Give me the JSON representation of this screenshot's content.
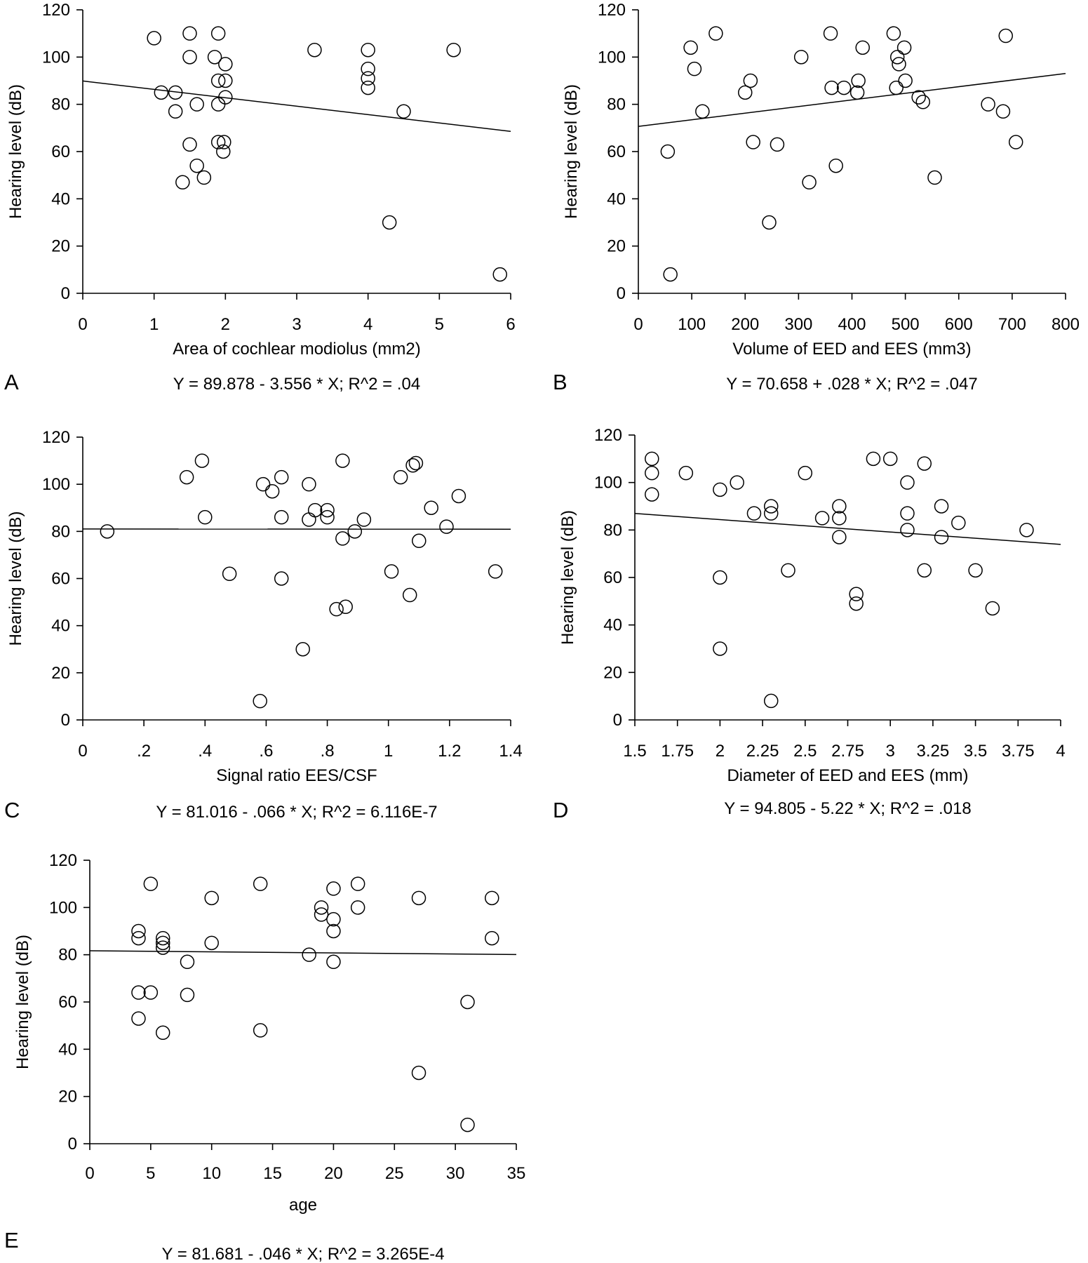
{
  "chart_data": [
    {
      "panel": "A",
      "type": "scatter",
      "xlabel": "Area of cochlear modiolus (mm2)",
      "ylabel": "Hearing level (dB)",
      "equation": "Y = 89.878 - 3.556 * X; R^2 = .04",
      "x_ticks": [
        "0",
        "1",
        "2",
        "3",
        "4",
        "5",
        "6"
      ],
      "y_ticks": [
        "0",
        "20",
        "40",
        "60",
        "80",
        "100",
        "120"
      ],
      "xlim": [
        0,
        6
      ],
      "ylim": [
        0,
        120
      ],
      "grid": false,
      "fit": {
        "intercept": 89.878,
        "slope": -3.556
      },
      "points": [
        {
          "x": 1.0,
          "y": 108
        },
        {
          "x": 1.1,
          "y": 85
        },
        {
          "x": 1.3,
          "y": 85
        },
        {
          "x": 1.3,
          "y": 77
        },
        {
          "x": 1.4,
          "y": 47
        },
        {
          "x": 1.5,
          "y": 110
        },
        {
          "x": 1.5,
          "y": 100
        },
        {
          "x": 1.5,
          "y": 63
        },
        {
          "x": 1.6,
          "y": 80
        },
        {
          "x": 1.6,
          "y": 54
        },
        {
          "x": 1.7,
          "y": 49
        },
        {
          "x": 1.85,
          "y": 100
        },
        {
          "x": 1.9,
          "y": 110
        },
        {
          "x": 1.9,
          "y": 90
        },
        {
          "x": 1.9,
          "y": 80
        },
        {
          "x": 1.9,
          "y": 64
        },
        {
          "x": 1.97,
          "y": 60
        },
        {
          "x": 2.0,
          "y": 97
        },
        {
          "x": 2.0,
          "y": 90
        },
        {
          "x": 2.0,
          "y": 83
        },
        {
          "x": 1.98,
          "y": 64
        },
        {
          "x": 3.25,
          "y": 103
        },
        {
          "x": 4.0,
          "y": 103
        },
        {
          "x": 4.0,
          "y": 95
        },
        {
          "x": 4.0,
          "y": 91
        },
        {
          "x": 4.0,
          "y": 87
        },
        {
          "x": 4.3,
          "y": 30
        },
        {
          "x": 4.5,
          "y": 77
        },
        {
          "x": 5.2,
          "y": 103
        },
        {
          "x": 5.85,
          "y": 8
        }
      ]
    },
    {
      "panel": "B",
      "type": "scatter",
      "xlabel": "Volume of EED and EES (mm3)",
      "ylabel": "Hearing level (dB)",
      "equation": "Y = 70.658 + .028 * X; R^2 = .047",
      "x_ticks": [
        "0",
        "100",
        "200",
        "300",
        "400",
        "500",
        "600",
        "700",
        "800"
      ],
      "y_ticks": [
        "0",
        "20",
        "40",
        "60",
        "80",
        "100",
        "120"
      ],
      "xlim": [
        0,
        800
      ],
      "ylim": [
        0,
        120
      ],
      "grid": false,
      "fit": {
        "intercept": 70.658,
        "slope": 0.028
      },
      "points": [
        {
          "x": 55,
          "y": 60
        },
        {
          "x": 60,
          "y": 8
        },
        {
          "x": 98,
          "y": 104
        },
        {
          "x": 105,
          "y": 95
        },
        {
          "x": 120,
          "y": 77
        },
        {
          "x": 145,
          "y": 110
        },
        {
          "x": 200,
          "y": 85
        },
        {
          "x": 210,
          "y": 90
        },
        {
          "x": 215,
          "y": 64
        },
        {
          "x": 245,
          "y": 30
        },
        {
          "x": 260,
          "y": 63
        },
        {
          "x": 305,
          "y": 100
        },
        {
          "x": 320,
          "y": 47
        },
        {
          "x": 360,
          "y": 110
        },
        {
          "x": 362,
          "y": 87
        },
        {
          "x": 370,
          "y": 54
        },
        {
          "x": 385,
          "y": 87
        },
        {
          "x": 410,
          "y": 85
        },
        {
          "x": 412,
          "y": 90
        },
        {
          "x": 420,
          "y": 104
        },
        {
          "x": 478,
          "y": 110
        },
        {
          "x": 483,
          "y": 87
        },
        {
          "x": 485,
          "y": 100
        },
        {
          "x": 488,
          "y": 97
        },
        {
          "x": 498,
          "y": 104
        },
        {
          "x": 500,
          "y": 90
        },
        {
          "x": 525,
          "y": 83
        },
        {
          "x": 533,
          "y": 81
        },
        {
          "x": 555,
          "y": 49
        },
        {
          "x": 655,
          "y": 80
        },
        {
          "x": 683,
          "y": 77
        },
        {
          "x": 688,
          "y": 109
        },
        {
          "x": 707,
          "y": 64
        }
      ]
    },
    {
      "panel": "C",
      "type": "scatter",
      "xlabel": "Signal ratio EES/CSF",
      "ylabel": "Hearing level (dB)",
      "equation": "Y = 81.016 - .066 * X; R^2 = 6.116E-7",
      "x_ticks": [
        "0",
        ".2",
        ".4",
        ".6",
        ".8",
        "1",
        "1.2",
        "1.4"
      ],
      "y_ticks": [
        "0",
        "20",
        "40",
        "60",
        "80",
        "100",
        "120"
      ],
      "xlim": [
        0,
        1.4
      ],
      "ylim": [
        0,
        120
      ],
      "grid": false,
      "fit": {
        "intercept": 81.016,
        "slope": -0.066
      },
      "points": [
        {
          "x": 0.08,
          "y": 80
        },
        {
          "x": 0.34,
          "y": 103
        },
        {
          "x": 0.39,
          "y": 110
        },
        {
          "x": 0.4,
          "y": 86
        },
        {
          "x": 0.48,
          "y": 62
        },
        {
          "x": 0.58,
          "y": 8
        },
        {
          "x": 0.59,
          "y": 100
        },
        {
          "x": 0.62,
          "y": 97
        },
        {
          "x": 0.65,
          "y": 103
        },
        {
          "x": 0.65,
          "y": 86
        },
        {
          "x": 0.65,
          "y": 60
        },
        {
          "x": 0.72,
          "y": 30
        },
        {
          "x": 0.74,
          "y": 100
        },
        {
          "x": 0.74,
          "y": 85
        },
        {
          "x": 0.76,
          "y": 89
        },
        {
          "x": 0.8,
          "y": 89
        },
        {
          "x": 0.8,
          "y": 86
        },
        {
          "x": 0.83,
          "y": 47
        },
        {
          "x": 0.85,
          "y": 110
        },
        {
          "x": 0.85,
          "y": 77
        },
        {
          "x": 0.86,
          "y": 48
        },
        {
          "x": 0.89,
          "y": 80
        },
        {
          "x": 0.92,
          "y": 85
        },
        {
          "x": 1.01,
          "y": 63
        },
        {
          "x": 1.04,
          "y": 103
        },
        {
          "x": 1.07,
          "y": 53
        },
        {
          "x": 1.08,
          "y": 108
        },
        {
          "x": 1.09,
          "y": 109
        },
        {
          "x": 1.1,
          "y": 76
        },
        {
          "x": 1.14,
          "y": 90
        },
        {
          "x": 1.19,
          "y": 82
        },
        {
          "x": 1.23,
          "y": 95
        },
        {
          "x": 1.35,
          "y": 63
        }
      ]
    },
    {
      "panel": "D",
      "type": "scatter",
      "xlabel": "Diameter of EED and EES (mm)",
      "ylabel": "Hearing level (dB)",
      "equation": "Y = 94.805 - 5.22 * X; R^2 = .018",
      "x_ticks": [
        "1.5",
        "1.75",
        "2",
        "2.25",
        "2.5",
        "2.75",
        "3",
        "3.25",
        "3.5",
        "3.75",
        "4"
      ],
      "y_ticks": [
        "0",
        "20",
        "40",
        "60",
        "80",
        "100",
        "120"
      ],
      "xlim": [
        1.5,
        4
      ],
      "ylim": [
        0,
        120
      ],
      "grid": false,
      "fit": {
        "intercept": 94.805,
        "slope": -5.22
      },
      "points": [
        {
          "x": 1.6,
          "y": 110
        },
        {
          "x": 1.6,
          "y": 104
        },
        {
          "x": 1.6,
          "y": 95
        },
        {
          "x": 1.8,
          "y": 104
        },
        {
          "x": 2.0,
          "y": 97
        },
        {
          "x": 2.0,
          "y": 60
        },
        {
          "x": 2.0,
          "y": 30
        },
        {
          "x": 2.1,
          "y": 100
        },
        {
          "x": 2.2,
          "y": 87
        },
        {
          "x": 2.3,
          "y": 90
        },
        {
          "x": 2.3,
          "y": 87
        },
        {
          "x": 2.3,
          "y": 8
        },
        {
          "x": 2.4,
          "y": 63
        },
        {
          "x": 2.5,
          "y": 104
        },
        {
          "x": 2.6,
          "y": 85
        },
        {
          "x": 2.7,
          "y": 90
        },
        {
          "x": 2.7,
          "y": 85
        },
        {
          "x": 2.7,
          "y": 77
        },
        {
          "x": 2.8,
          "y": 53
        },
        {
          "x": 2.8,
          "y": 49
        },
        {
          "x": 2.9,
          "y": 110
        },
        {
          "x": 3.0,
          "y": 110
        },
        {
          "x": 3.1,
          "y": 100
        },
        {
          "x": 3.1,
          "y": 87
        },
        {
          "x": 3.1,
          "y": 80
        },
        {
          "x": 3.2,
          "y": 108
        },
        {
          "x": 3.2,
          "y": 63
        },
        {
          "x": 3.3,
          "y": 90
        },
        {
          "x": 3.3,
          "y": 77
        },
        {
          "x": 3.4,
          "y": 83
        },
        {
          "x": 3.5,
          "y": 63
        },
        {
          "x": 3.6,
          "y": 47
        },
        {
          "x": 3.8,
          "y": 80
        }
      ]
    },
    {
      "panel": "E",
      "type": "scatter",
      "xlabel": "age",
      "ylabel": "Hearing level (dB)",
      "equation": "Y = 81.681 - .046 * X; R^2 = 3.265E-4",
      "x_ticks": [
        "0",
        "5",
        "10",
        "15",
        "20",
        "25",
        "30",
        "35"
      ],
      "y_ticks": [
        "0",
        "20",
        "40",
        "60",
        "80",
        "100",
        "120"
      ],
      "xlim": [
        0,
        35
      ],
      "ylim": [
        0,
        120
      ],
      "grid": false,
      "fit": {
        "intercept": 81.681,
        "slope": -0.046
      },
      "points": [
        {
          "x": 4,
          "y": 90
        },
        {
          "x": 4,
          "y": 87
        },
        {
          "x": 4,
          "y": 64
        },
        {
          "x": 4,
          "y": 53
        },
        {
          "x": 5,
          "y": 110
        },
        {
          "x": 5,
          "y": 64
        },
        {
          "x": 6,
          "y": 87
        },
        {
          "x": 6,
          "y": 85
        },
        {
          "x": 6,
          "y": 83
        },
        {
          "x": 6,
          "y": 47
        },
        {
          "x": 8,
          "y": 77
        },
        {
          "x": 8,
          "y": 63
        },
        {
          "x": 10,
          "y": 104
        },
        {
          "x": 10,
          "y": 85
        },
        {
          "x": 14,
          "y": 110
        },
        {
          "x": 14,
          "y": 48
        },
        {
          "x": 18,
          "y": 80
        },
        {
          "x": 19,
          "y": 100
        },
        {
          "x": 19,
          "y": 97
        },
        {
          "x": 20,
          "y": 108
        },
        {
          "x": 20,
          "y": 95
        },
        {
          "x": 20,
          "y": 90
        },
        {
          "x": 20,
          "y": 77
        },
        {
          "x": 22,
          "y": 110
        },
        {
          "x": 22,
          "y": 100
        },
        {
          "x": 27,
          "y": 104
        },
        {
          "x": 27,
          "y": 30
        },
        {
          "x": 31,
          "y": 60
        },
        {
          "x": 31,
          "y": 8
        },
        {
          "x": 33,
          "y": 104
        },
        {
          "x": 33,
          "y": 87
        }
      ]
    }
  ]
}
